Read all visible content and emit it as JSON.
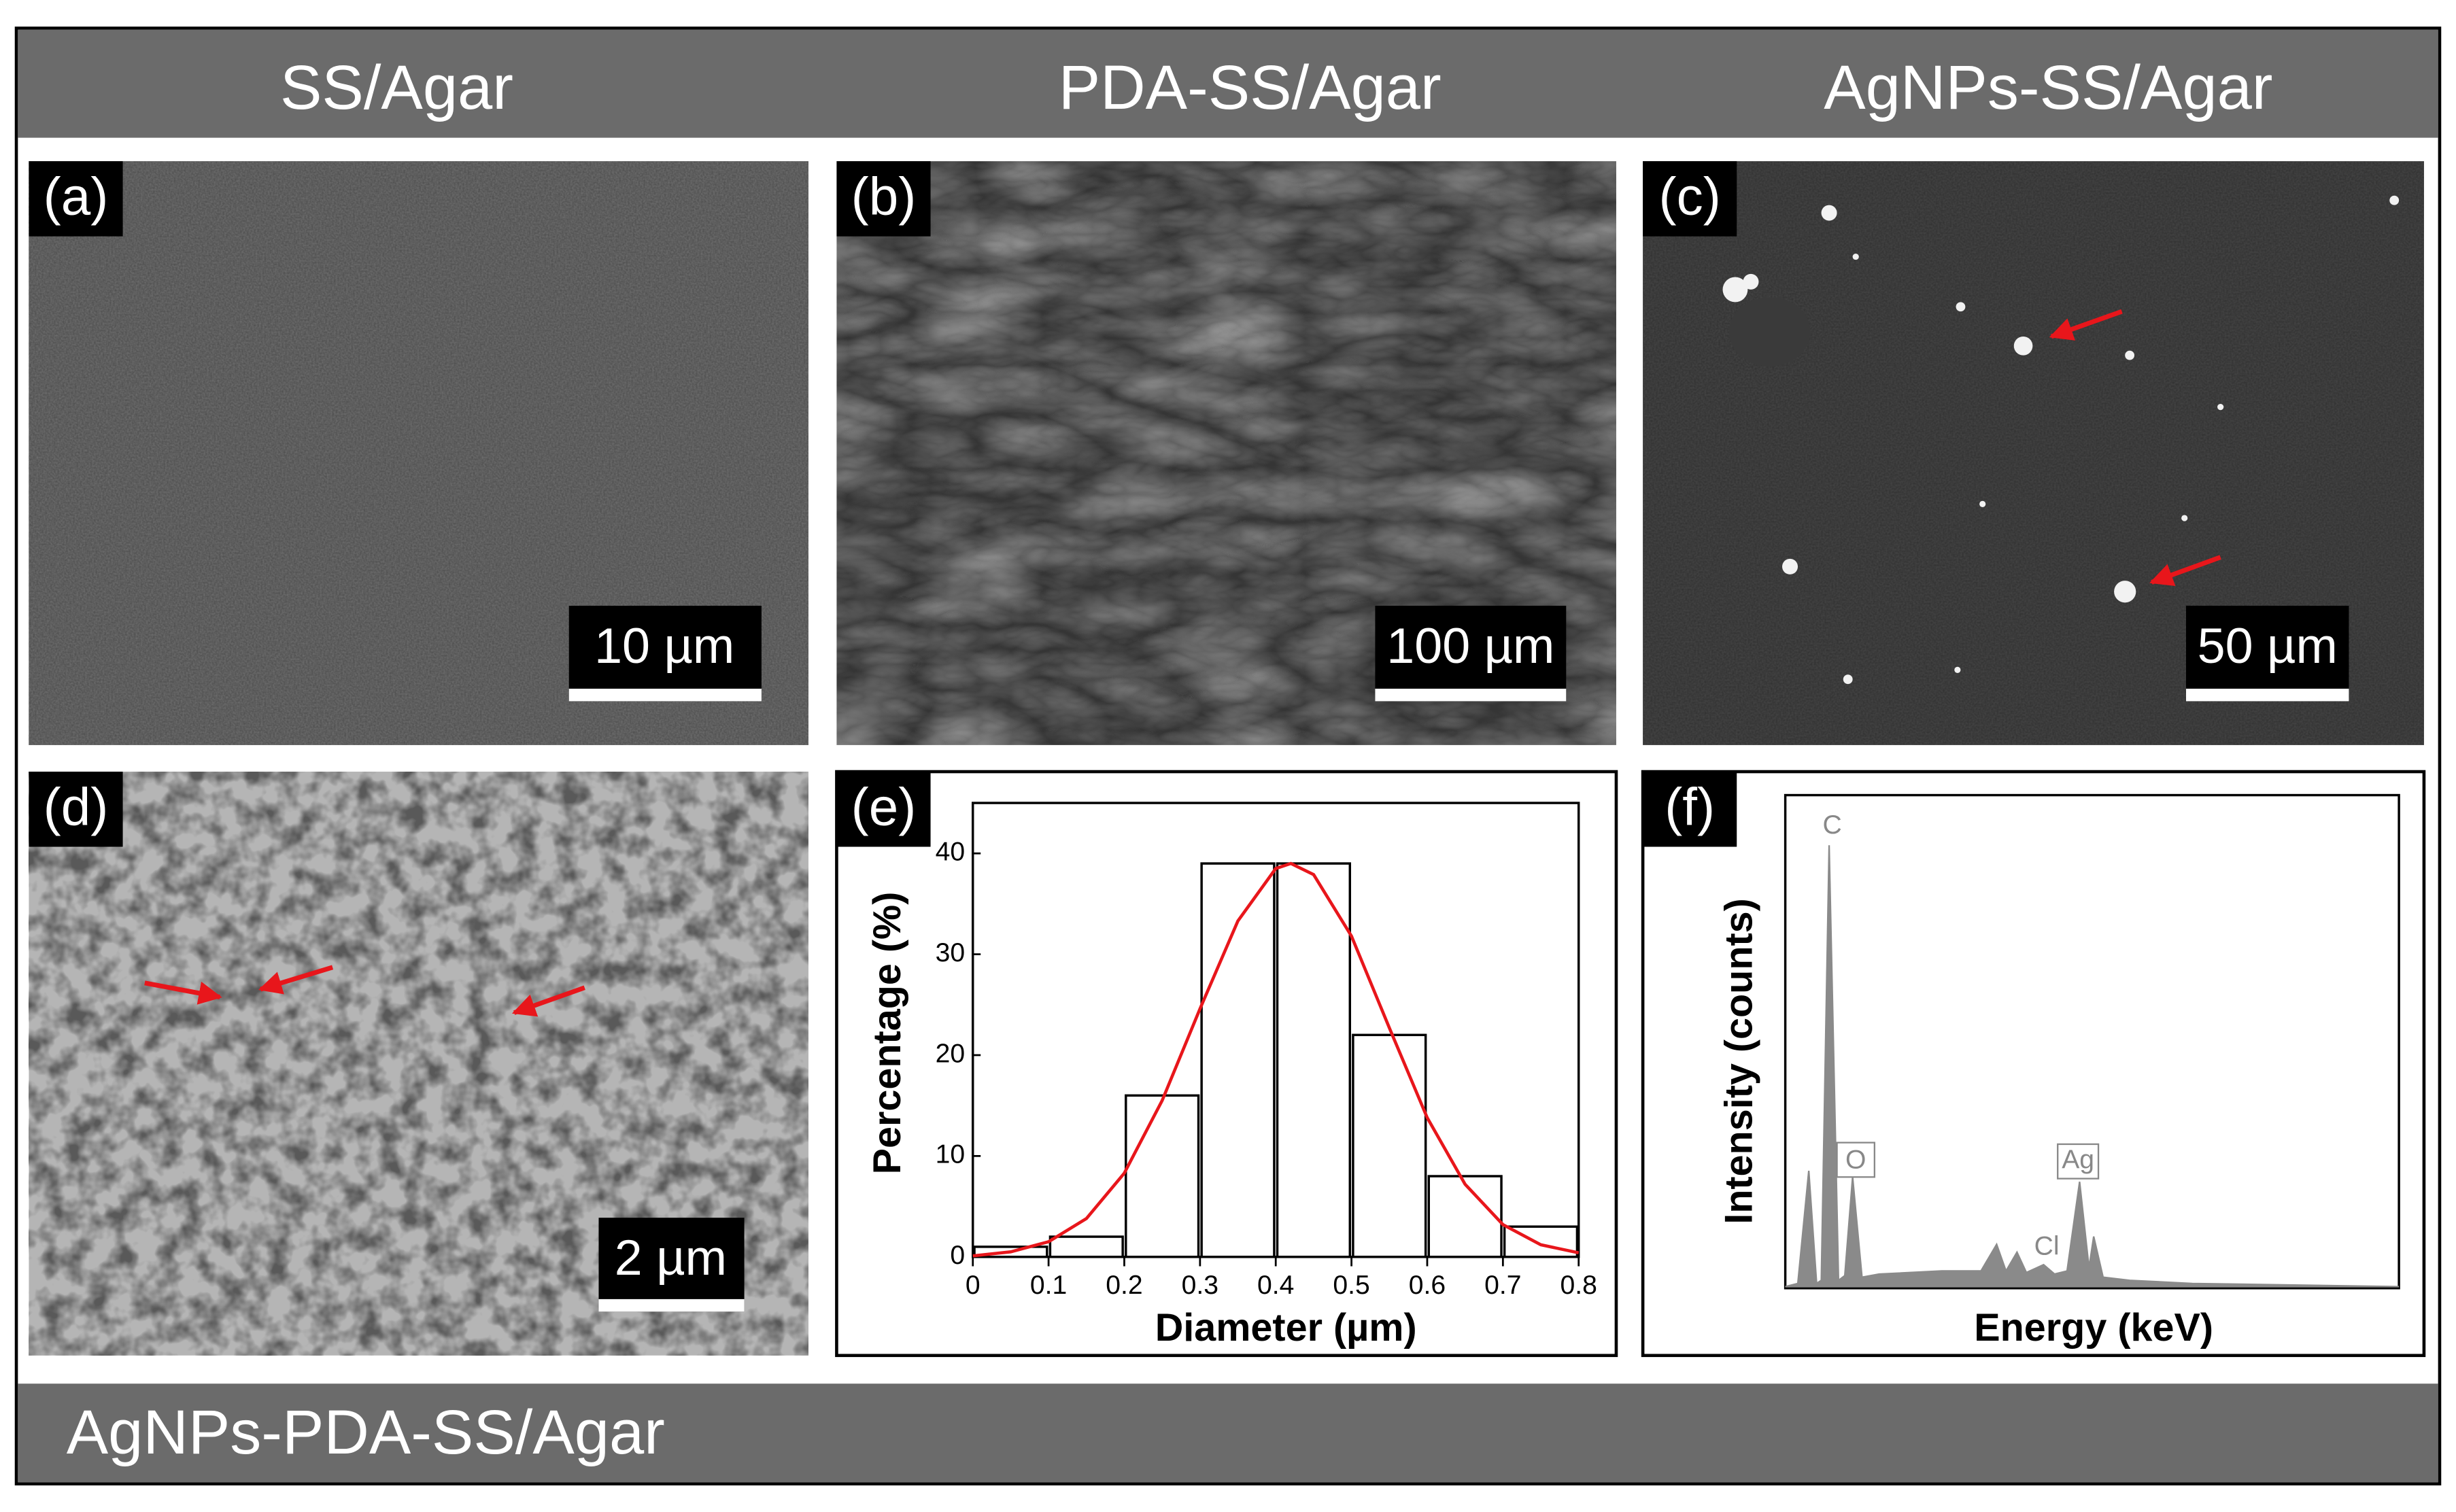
{
  "headers": [
    "SS/Agar",
    "PDA-SS/Agar",
    "AgNPs-SS/Agar"
  ],
  "footer": "AgNPs-PDA-SS/Agar",
  "panels": [
    {
      "label": "(a)",
      "scale_bar": "10 µm"
    },
    {
      "label": "(b)",
      "scale_bar": "100 µm"
    },
    {
      "label": "(c)",
      "scale_bar": "50 µm"
    },
    {
      "label": "(d)",
      "scale_bar": "2 µm"
    },
    {
      "label": "(e)"
    },
    {
      "label": "(f)",
      "x_label": "Energy (keV)",
      "y_label": "Intensity (counts)",
      "peaks": [
        "C",
        "O",
        "Cl",
        "Ag"
      ]
    }
  ],
  "chart_data": [
    {
      "type": "histogram",
      "x_label": "Diameter (µm)",
      "y_label": "Percentage (%)",
      "bins": [
        0,
        0.1,
        0.2,
        0.3,
        0.4,
        0.5,
        0.6,
        0.7,
        0.8
      ],
      "values": [
        1,
        2,
        16,
        39,
        39,
        22,
        8,
        3
      ],
      "color": "#ffffff",
      "xlim": [
        0,
        0.8
      ],
      "ylim": [
        0,
        45
      ],
      "xticks": [
        0,
        0.1,
        0.2,
        0.3,
        0.4,
        0.5,
        0.6,
        0.7,
        0.8
      ],
      "yticks": [
        0,
        10,
        20,
        30,
        40
      ],
      "fit": {
        "color": "#e8161b",
        "x": [
          0,
          0.05,
          0.1,
          0.15,
          0.2,
          0.25,
          0.3,
          0.35,
          0.4,
          0.42,
          0.45,
          0.5,
          0.55,
          0.6,
          0.65,
          0.7,
          0.75,
          0.8
        ],
        "values": [
          0.1,
          0.5,
          1.5,
          3.8,
          8.3,
          15.5,
          24.6,
          33.3,
          38.5,
          39,
          37.9,
          31.8,
          22.7,
          13.8,
          7.2,
          3.2,
          1.2,
          0.4
        ]
      }
    }
  ]
}
